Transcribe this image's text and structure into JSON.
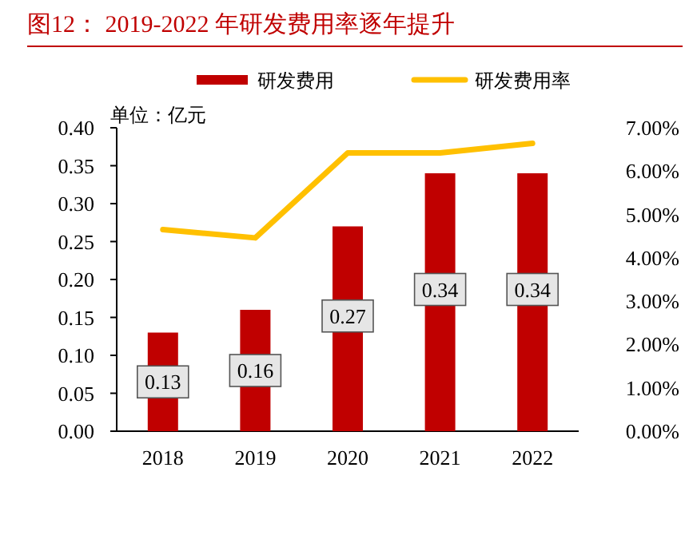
{
  "chart_data": {
    "type": "bar",
    "title": "图12：  2019-2022 年研发费用率逐年提升",
    "annotations": [
      "单位：亿元"
    ],
    "categories": [
      "2018",
      "2019",
      "2020",
      "2021",
      "2022"
    ],
    "series": [
      {
        "name": "研发费用",
        "color": "#c00000",
        "values": [
          0.13,
          0.16,
          0.27,
          0.34,
          0.34
        ],
        "value_labels": [
          "0.13",
          "0.16",
          "0.27",
          "0.34",
          "0.34"
        ]
      },
      {
        "name": "研发费用率",
        "type": "line",
        "axis": "y2",
        "color": "#ffc000",
        "values": [
          4.65,
          4.46,
          6.42,
          6.42,
          6.64
        ]
      }
    ],
    "ylim": [
      0,
      0.4
    ],
    "yticks": [
      {
        "value": 0,
        "label": "0.00"
      },
      {
        "value": 0.05,
        "label": "0.05"
      },
      {
        "value": 0.1,
        "label": "0.10"
      },
      {
        "value": 0.15,
        "label": "0.15"
      },
      {
        "value": 0.2,
        "label": "0.20"
      },
      {
        "value": 0.25,
        "label": "0.25"
      },
      {
        "value": 0.3,
        "label": "0.30"
      },
      {
        "value": 0.35,
        "label": "0.35"
      },
      {
        "value": 0.4,
        "label": "0.40"
      }
    ],
    "y2lim": [
      0,
      7
    ],
    "y2ticks": [
      {
        "value": 0,
        "label": "0.00%"
      },
      {
        "value": 1,
        "label": "1.00%"
      },
      {
        "value": 2,
        "label": "2.00%"
      },
      {
        "value": 3,
        "label": "3.00%"
      },
      {
        "value": 4,
        "label": "4.00%"
      },
      {
        "value": 5,
        "label": "5.00%"
      },
      {
        "value": 6,
        "label": "6.00%"
      },
      {
        "value": 7,
        "label": "7.00%"
      }
    ],
    "legend": "top",
    "grid": false
  }
}
